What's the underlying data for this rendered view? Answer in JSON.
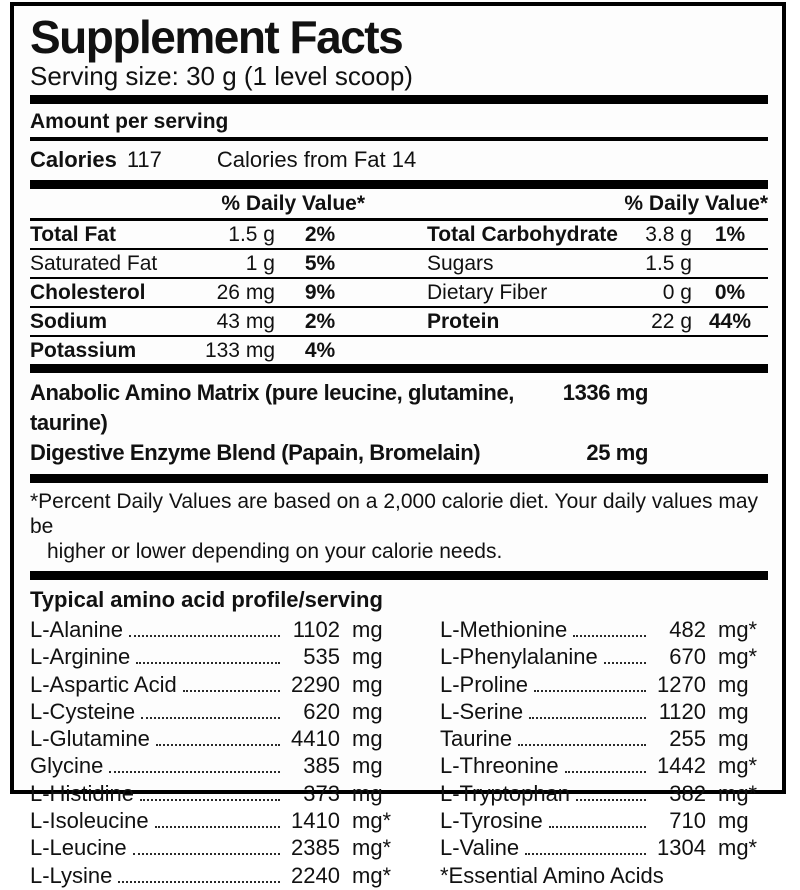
{
  "label": {
    "title": "Supplement Facts",
    "serving_size": "Serving size: 30 g (1 level scoop)",
    "amount_per_serving": "Amount per serving",
    "calories_label": "Calories",
    "calories_value": "117",
    "calories_from_fat": "Calories from Fat 14",
    "daily_value_header": "% Daily Value*",
    "nutrients": {
      "left": [
        {
          "name": "Total Fat",
          "amount": "1.5 g",
          "dv": "2%"
        },
        {
          "name": "Saturated Fat",
          "amount": "1 g",
          "dv": "5%"
        },
        {
          "name": "Cholesterol",
          "amount": "26 mg",
          "dv": "9%"
        },
        {
          "name": "Sodium",
          "amount": "43 mg",
          "dv": "2%"
        },
        {
          "name": "Potassium",
          "amount": "133 mg",
          "dv": "4%"
        }
      ],
      "right": [
        {
          "name": "Total Carbohydrate",
          "amount": "3.8 g",
          "dv": "1%"
        },
        {
          "name": "Sugars",
          "amount": "1.5 g",
          "dv": ""
        },
        {
          "name": "Dietary Fiber",
          "amount": "0 g",
          "dv": "0%"
        },
        {
          "name": "Protein",
          "amount": "22 g",
          "dv": "44%"
        },
        {
          "name": "",
          "amount": "",
          "dv": ""
        }
      ]
    },
    "blends": [
      {
        "name": "Anabolic Amino Matrix (pure leucine, glutamine, taurine)",
        "amount": "1336 mg"
      },
      {
        "name": "Digestive Enzyme Blend (Papain, Bromelain)",
        "amount": "25 mg"
      }
    ],
    "footnote_line1": "*Percent Daily Values are based on a 2,000 calorie diet. Your daily values may be",
    "footnote_line2": "higher or lower depending on your calorie needs.",
    "amino_heading": "Typical amino acid profile/serving",
    "aminos": {
      "left": [
        {
          "name": "L-Alanine",
          "value": "1102",
          "unit": "mg"
        },
        {
          "name": "L-Arginine",
          "value": "535",
          "unit": "mg"
        },
        {
          "name": "L-Aspartic Acid",
          "value": "2290",
          "unit": "mg"
        },
        {
          "name": "L-Cysteine",
          "value": "620",
          "unit": "mg"
        },
        {
          "name": "L-Glutamine",
          "value": "4410",
          "unit": "mg"
        },
        {
          "name": "Glycine",
          "value": "385",
          "unit": "mg"
        },
        {
          "name": "L-Histidine",
          "value": "373",
          "unit": "mg"
        },
        {
          "name": "L-Isoleucine",
          "value": "1410",
          "unit": "mg*"
        },
        {
          "name": "L-Leucine",
          "value": "2385",
          "unit": "mg*"
        },
        {
          "name": "L-Lysine",
          "value": "2240",
          "unit": "mg*"
        }
      ],
      "right": [
        {
          "name": "L-Methionine",
          "value": "482",
          "unit": "mg*"
        },
        {
          "name": "L-Phenylalanine",
          "value": "670",
          "unit": "mg*"
        },
        {
          "name": "L-Proline",
          "value": "1270",
          "unit": "mg"
        },
        {
          "name": "L-Serine",
          "value": "1120",
          "unit": "mg"
        },
        {
          "name": "Taurine",
          "value": "255",
          "unit": "mg"
        },
        {
          "name": "L-Threonine",
          "value": "1442",
          "unit": "mg*"
        },
        {
          "name": "L-Tryptophan",
          "value": "382",
          "unit": "mg*"
        },
        {
          "name": "L-Tyrosine",
          "value": "710",
          "unit": "mg"
        },
        {
          "name": "L-Valine",
          "value": "1304",
          "unit": "mg*"
        }
      ],
      "essential_note": "*Essential Amino Acids"
    },
    "colors": {
      "text": "#111111",
      "background": "#fdfdfd",
      "border": "#000000"
    }
  }
}
